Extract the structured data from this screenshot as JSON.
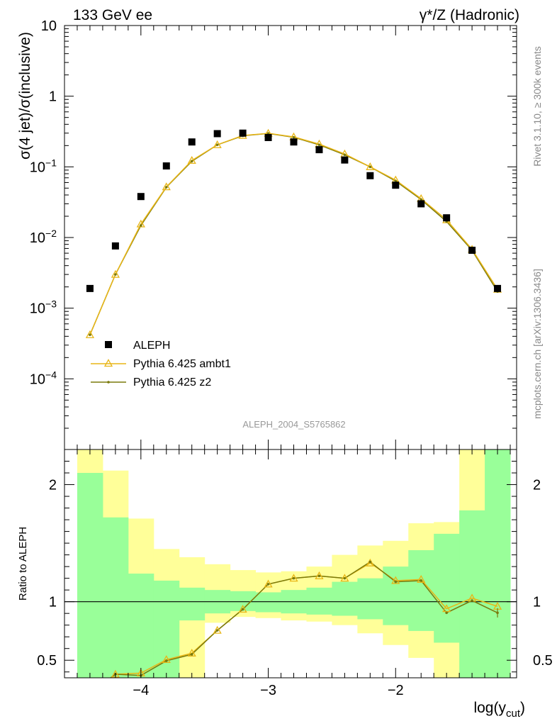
{
  "header": {
    "left_label": "133 GeV ee",
    "right_label": "γ*/Z (Hadronic)"
  },
  "side_text": {
    "rivet": "Rivet 3.1.10, ≥ 300k events",
    "mcplots": "mcplots.cern.ch [arXiv:1306.3436]"
  },
  "analysis_id": "ALEPH_2004_S5765862",
  "chart_data": [
    {
      "type": "scatter",
      "panel": "main",
      "ylabel": "σ(4 jet)/σ(inclusive)",
      "y_scale": "log",
      "ylim": [
        1e-05,
        10
      ],
      "xlim": [
        -4.6,
        -1.05
      ],
      "yticks": [
        "10",
        "1",
        "10⁻¹",
        "10⁻²",
        "10⁻³",
        "10⁻⁴"
      ],
      "legend_position": "bottom-left",
      "x": [
        -4.4,
        -4.2,
        -4.0,
        -3.8,
        -3.6,
        -3.4,
        -3.2,
        -3.0,
        -2.8,
        -2.6,
        -2.4,
        -2.2,
        -2.0,
        -1.8,
        -1.6,
        -1.4,
        -1.2
      ],
      "series": [
        {
          "name": "ALEPH",
          "color": "#000000",
          "marker": "square",
          "values": [
            0.0019,
            0.0076,
            0.038,
            0.103,
            0.225,
            0.295,
            0.3,
            0.26,
            0.225,
            0.175,
            0.125,
            0.075,
            0.055,
            0.03,
            0.019,
            0.0066,
            0.0019
          ]
        },
        {
          "name": "Pythia 6.425 ambt1",
          "color": "#e8b516",
          "marker": "triangle",
          "values": [
            0.00042,
            0.003,
            0.0155,
            0.052,
            0.123,
            0.205,
            0.278,
            0.298,
            0.265,
            0.21,
            0.152,
            0.1,
            0.065,
            0.0355,
            0.0178,
            0.0068,
            0.00185
          ]
        },
        {
          "name": "Pythia 6.425 z2",
          "color": "#7a7a0c",
          "marker": "dot",
          "values": [
            0.00042,
            0.003,
            0.0148,
            0.0515,
            0.12,
            0.205,
            0.275,
            0.297,
            0.262,
            0.205,
            0.148,
            0.1,
            0.063,
            0.0345,
            0.0168,
            0.0066,
            0.00172
          ]
        }
      ]
    },
    {
      "type": "line",
      "panel": "ratio",
      "ylabel": "Ratio to ALEPH",
      "xlabel": "log(y",
      "xlabel_sub": "cut",
      "xlabel_close": ")",
      "ylim": [
        0.35,
        2.3
      ],
      "xlim": [
        -4.6,
        -1.05
      ],
      "x_ticks": [
        {
          "value": -4,
          "label": "−4"
        },
        {
          "value": -3,
          "label": "−3"
        },
        {
          "value": -2,
          "label": "−2"
        }
      ],
      "y_ticks": [
        {
          "value": 0.5,
          "label": "0.5"
        },
        {
          "value": 1,
          "label": "1"
        },
        {
          "value": 2,
          "label": "2"
        }
      ],
      "x": [
        -4.4,
        -4.2,
        -4.0,
        -3.8,
        -3.6,
        -3.4,
        -3.2,
        -3.0,
        -2.8,
        -2.6,
        -2.4,
        -2.2,
        -2.0,
        -1.8,
        -1.6,
        -1.4,
        -1.2
      ],
      "band_edges": [
        -4.5,
        -4.3,
        -4.1,
        -3.9,
        -3.7,
        -3.5,
        -3.3,
        -3.1,
        -2.9,
        -2.7,
        -2.5,
        -2.3,
        -2.1,
        -1.9,
        -1.7,
        -1.5,
        -1.3,
        -1.1
      ],
      "bands": {
        "outer": {
          "color": "#ffff99",
          "low": [
            0.35,
            0.35,
            0.35,
            0.35,
            0.35,
            0.82,
            0.87,
            0.86,
            0.84,
            0.83,
            0.8,
            0.73,
            0.63,
            0.52,
            0.35,
            0.35,
            0.35
          ],
          "high": [
            2.3,
            2.12,
            1.71,
            1.45,
            1.38,
            1.32,
            1.27,
            1.25,
            1.26,
            1.3,
            1.4,
            1.48,
            1.52,
            1.67,
            1.68,
            2.4,
            2.3
          ]
        },
        "inner": {
          "color": "#99ff99",
          "low": [
            0.35,
            0.35,
            0.35,
            0.35,
            0.84,
            0.9,
            0.92,
            0.91,
            0.9,
            0.89,
            0.88,
            0.85,
            0.8,
            0.75,
            0.65,
            0.35,
            0.35
          ],
          "high": [
            2.1,
            1.72,
            1.24,
            1.18,
            1.12,
            1.1,
            1.09,
            1.08,
            1.1,
            1.12,
            1.17,
            1.2,
            1.3,
            1.44,
            1.58,
            1.78,
            2.3
          ]
        }
      },
      "series": [
        {
          "name": "Pythia 6.425 ambt1",
          "color": "#e8b516",
          "values": [
            0.22,
            0.38,
            0.39,
            0.505,
            0.56,
            0.755,
            0.935,
            1.15,
            1.2,
            1.22,
            1.2,
            1.33,
            1.18,
            1.19,
            0.94,
            1.03,
            0.96
          ]
        },
        {
          "name": "Pythia 6.425 z2",
          "color": "#7a7a0c",
          "values": [
            0.22,
            0.38,
            0.37,
            0.495,
            0.55,
            0.755,
            0.935,
            1.15,
            1.2,
            1.22,
            1.2,
            1.34,
            1.17,
            1.18,
            0.905,
            1.01,
            0.905
          ]
        }
      ]
    }
  ]
}
